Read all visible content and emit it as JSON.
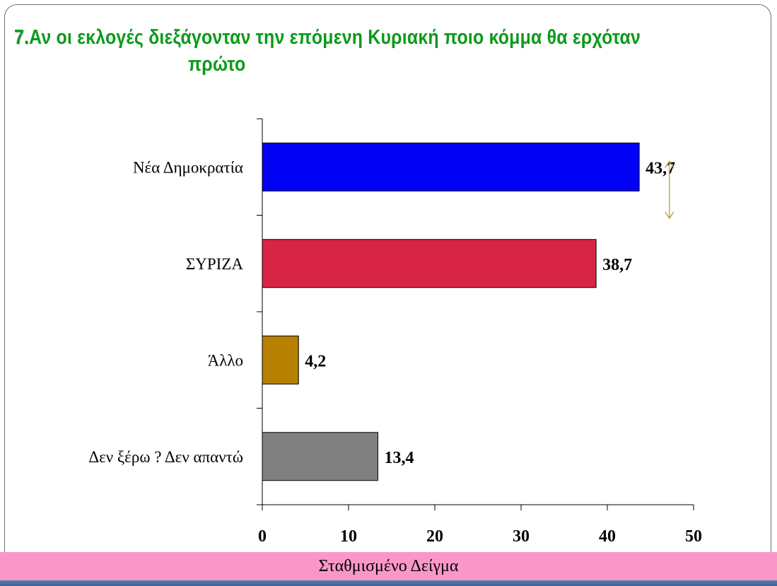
{
  "slide": {
    "title_number": "7.",
    "title_line1": "Αν οι εκλογές διεξάγονταν την επόμενη  Κυριακή ποιο κόμμα θα ερχόταν",
    "title_line2": "πρώτο",
    "title_color": "#0c9a1a",
    "footer_label": "Σταθμισμένο Δείγμα",
    "footer_color": "#fb97c8"
  },
  "chart_data": {
    "type": "bar",
    "orientation": "horizontal",
    "categories": [
      "Νέα Δημοκρατία",
      "ΣΥΡΙΖΑ",
      "Άλλο",
      "Δεν ξέρω ? Δεν απαντώ"
    ],
    "values": [
      43.7,
      38.7,
      4.2,
      13.4
    ],
    "value_labels": [
      "43,7",
      "38,7",
      "4,2",
      "13,4"
    ],
    "colors": [
      "#0000f5",
      "#d92545",
      "#b78000",
      "#808080"
    ],
    "xlim": [
      0,
      50
    ],
    "x_ticks": [
      0,
      10,
      20,
      30,
      40,
      50
    ],
    "x_tick_labels": [
      "0",
      "10",
      "20",
      "30",
      "40",
      "50"
    ],
    "grid": false,
    "legend": "none",
    "annotation": {
      "type": "double-arrow",
      "between": [
        "Νέα Δημοκρατία",
        "ΣΥΡΙΖΑ"
      ],
      "color": "#b09a2a"
    }
  }
}
